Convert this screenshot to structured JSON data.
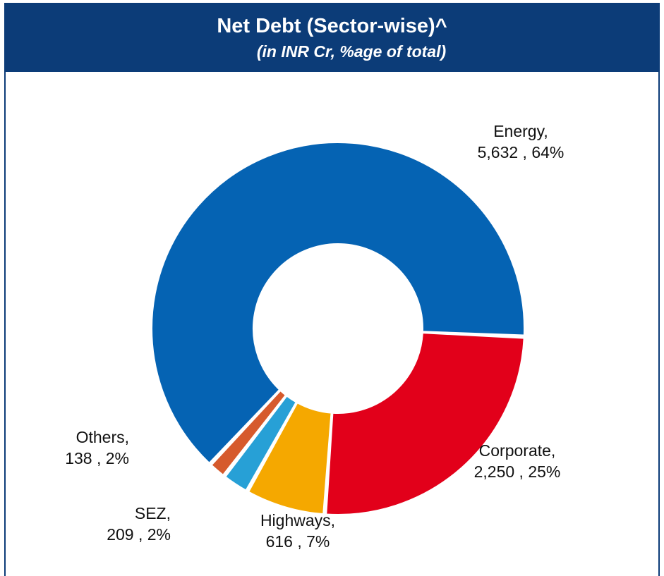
{
  "header": {
    "title": "Net Debt (Sector-wise)^",
    "subtitle": "(in INR Cr, %age of total)"
  },
  "colors": {
    "header_bg": "#0c3c78",
    "Energy": "#0563b3",
    "Corporate": "#e2001a",
    "Highways": "#f5a800",
    "SEZ": "#27a0d6",
    "Others": "#d65a2c"
  },
  "chart_data": {
    "type": "pie",
    "variant": "donut",
    "title": "Net Debt (Sector-wise)^",
    "subtitle": "(in INR Cr, %age of total)",
    "slices": [
      {
        "name": "Energy",
        "value": 5632,
        "value_label": "5,632",
        "percent_label": "64%"
      },
      {
        "name": "Corporate",
        "value": 2250,
        "value_label": "2,250",
        "percent_label": "25%"
      },
      {
        "name": "Highways",
        "value": 616,
        "value_label": "616",
        "percent_label": "7%"
      },
      {
        "name": "SEZ",
        "value": 209,
        "value_label": "209",
        "percent_label": "2%"
      },
      {
        "name": "Others",
        "value": 138,
        "value_label": "138",
        "percent_label": "2%"
      }
    ],
    "legend": "none"
  }
}
